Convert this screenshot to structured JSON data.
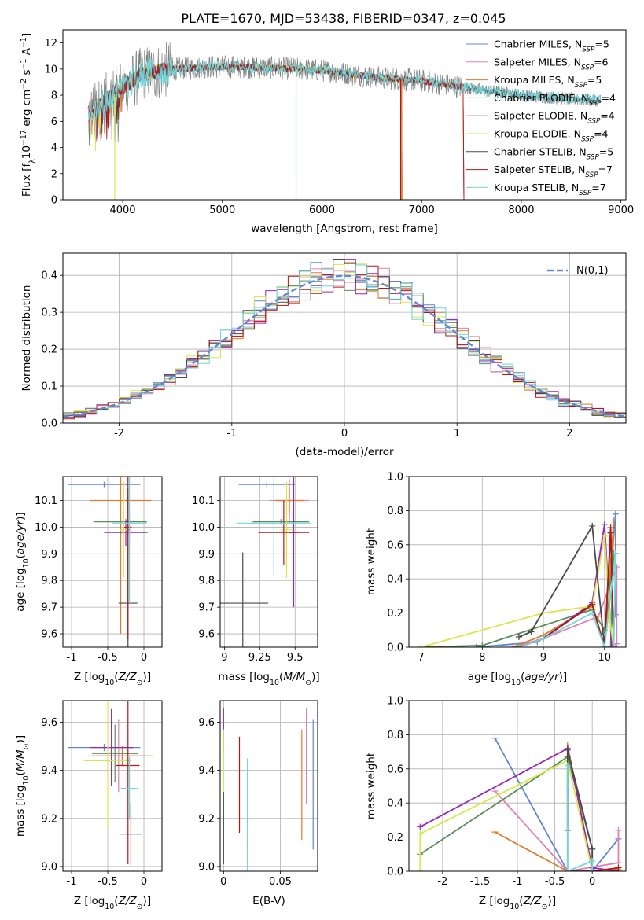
{
  "figure": {
    "title": "PLATE=1670, MJD=53438, FIBERID=0347, z=0.045"
  },
  "colors": {
    "Chabrier MILES": "#5f86d8",
    "Salpeter MILES": "#e57fb0",
    "Kroupa MILES": "#e07a2a",
    "Chabrier ELODIE": "#5a8f5a",
    "Salpeter ELODIE": "#9a27b3",
    "Kroupa ELODIE": "#d8e84a",
    "Chabrier STELIB": "#4a4a4a",
    "Salpeter STELIB": "#b01818",
    "Kroupa STELIB": "#6ed8dc",
    "data": "#808080"
  },
  "chart_data": [
    {
      "id": "spectrum",
      "type": "line",
      "xlabel": "wavelength [Angstrom, rest frame]",
      "ylabel": "Flux [f_λ 10^-17 erg cm^-2 s^-1 A^-1]",
      "xlim": [
        3400,
        9050
      ],
      "ylim": [
        0,
        13
      ],
      "xticks": [
        4000,
        5000,
        6000,
        7000,
        8000,
        9000
      ],
      "yticks": [
        0,
        2,
        4,
        6,
        8,
        10,
        12
      ],
      "grid": false,
      "legend_position": "top-right",
      "continuum_anchor_points": [
        [
          3650,
          6.4
        ],
        [
          3900,
          8.0
        ],
        [
          4000,
          8.6
        ],
        [
          4200,
          9.6
        ],
        [
          4500,
          10.0
        ],
        [
          5000,
          10.2
        ],
        [
          5500,
          10.1
        ],
        [
          6000,
          9.9
        ],
        [
          6500,
          9.4
        ],
        [
          7000,
          9.1
        ],
        [
          7500,
          8.5
        ],
        [
          8000,
          8.0
        ],
        [
          8500,
          7.7
        ],
        [
          8800,
          7.6
        ]
      ],
      "legend": [
        {
          "name": "Chabrier MILES",
          "nssp": "5"
        },
        {
          "name": "Salpeter MILES",
          "nssp": "6"
        },
        {
          "name": "Kroupa MILES",
          "nssp": "5"
        },
        {
          "name": "Chabrier ELODIE",
          "nssp": "4"
        },
        {
          "name": "Salpeter ELODIE",
          "nssp": "4"
        },
        {
          "name": "Kroupa ELODIE",
          "nssp": "4"
        },
        {
          "name": "Chabrier STELIB",
          "nssp": "5"
        },
        {
          "name": "Salpeter STELIB",
          "nssp": "7"
        },
        {
          "name": "Kroupa STELIB",
          "nssp": "7"
        }
      ]
    },
    {
      "id": "residuals",
      "type": "bar",
      "xlabel": "(data-model)/error",
      "ylabel": "Normed distribution",
      "xlim": [
        -2.5,
        2.5
      ],
      "ylim": [
        0,
        0.46
      ],
      "xticks": [
        -2,
        -1,
        0,
        1,
        2
      ],
      "yticks": [
        0.0,
        0.1,
        0.2,
        0.3,
        0.4
      ],
      "grid": true,
      "legend_position": "top-right",
      "legend_label": "N(0,1)",
      "bins": 50
    },
    {
      "id": "age_vs_Z",
      "type": "scatter",
      "xlabel": "Z [log10(Z/Z_sun)]",
      "ylabel": "age [log10(age/yr)]",
      "xlim": [
        -1.12,
        0.25
      ],
      "ylim": [
        9.55,
        10.19
      ],
      "xticks": [
        -1.0,
        -0.5,
        0.0
      ],
      "yticks": [
        9.6,
        9.7,
        9.8,
        9.9,
        10.0,
        10.1
      ],
      "grid": true,
      "points": [
        {
          "model": "Chabrier MILES",
          "x": -0.55,
          "xerr": 0.5,
          "y": 10.16,
          "yerr": 0.01
        },
        {
          "model": "Salpeter MILES",
          "x": -0.2,
          "xerr": 0.02,
          "y": 9.99,
          "yerr": 0.05
        },
        {
          "model": "Kroupa MILES",
          "x": -0.32,
          "xerr": 0.42,
          "y": 10.1,
          "yerr": 0.5
        },
        {
          "model": "Chabrier ELODIE",
          "x": -0.33,
          "xerr": 0.37,
          "y": 10.02,
          "yerr": 0.05
        },
        {
          "model": "Salpeter ELODIE",
          "x": -0.25,
          "xerr": 0.3,
          "y": 9.98,
          "yerr": 0.05
        },
        {
          "model": "Kroupa ELODIE",
          "x": -0.28,
          "xerr": 0.05,
          "y": 9.99,
          "yerr": 0.18
        },
        {
          "model": "Chabrier STELIB",
          "x": -0.22,
          "xerr": 0.13,
          "y": 9.715,
          "yerr": 0.43
        },
        {
          "model": "Salpeter STELIB",
          "x": -0.22,
          "xerr": 0.05,
          "y": 10.0,
          "yerr": 0.42
        },
        {
          "model": "Kroupa STELIB",
          "x": -0.2,
          "xerr": 0.24,
          "y": 10.015,
          "yerr": 0.3
        }
      ]
    },
    {
      "id": "age_vs_mass",
      "type": "scatter",
      "xlabel": "mass [log10(M/M_sun)]",
      "ylabel": "",
      "xlim": [
        8.97,
        9.66
      ],
      "ylim": [
        9.55,
        10.19
      ],
      "xticks": [
        9.0,
        9.25,
        9.5
      ],
      "yticks": [
        9.6,
        9.7,
        9.8,
        9.9,
        10.0,
        10.1
      ],
      "grid": true,
      "points": [
        {
          "model": "Chabrier MILES",
          "x": 9.3,
          "xerr": 0.2,
          "y": 10.16,
          "yerr": 0.01
        },
        {
          "model": "Salpeter MILES",
          "x": 9.46,
          "xerr": 0.14,
          "y": 10.1,
          "yerr": 0.08
        },
        {
          "model": "Kroupa MILES",
          "x": 9.46,
          "xerr": 0.1,
          "y": 10.1,
          "yerr": 0.05
        },
        {
          "model": "Chabrier ELODIE",
          "x": 9.4,
          "xerr": 0.2,
          "y": 10.02,
          "yerr": 0.01
        },
        {
          "model": "Salpeter ELODIE",
          "x": 9.49,
          "xerr": 0.03,
          "y": 9.98,
          "yerr": 0.28
        },
        {
          "model": "Kroupa ELODIE",
          "x": 9.44,
          "xerr": 0.04,
          "y": 9.99,
          "yerr": 0.18
        },
        {
          "model": "Chabrier STELIB",
          "x": 9.13,
          "xerr": 0.18,
          "y": 9.715,
          "yerr": 0.19
        },
        {
          "model": "Salpeter STELIB",
          "x": 9.42,
          "xerr": 0.18,
          "y": 9.98,
          "yerr": 0.12
        },
        {
          "model": "Kroupa STELIB",
          "x": 9.35,
          "xerr": 0.26,
          "y": 10.015,
          "yerr": 0.2
        }
      ]
    },
    {
      "id": "mass_weight_vs_age",
      "type": "line",
      "xlabel": "age [log10(age/yr)]",
      "ylabel": "mass weight",
      "xlim": [
        6.8,
        10.35
      ],
      "ylim": [
        0,
        1.0
      ],
      "xticks": [
        7,
        8,
        9,
        10
      ],
      "yticks": [
        0.0,
        0.2,
        0.4,
        0.6,
        0.8,
        1.0
      ],
      "grid": true,
      "series": [
        {
          "model": "Chabrier MILES",
          "points": [
            [
              7.9,
              0.0
            ],
            [
              8.9,
              0.03
            ],
            [
              9.8,
              0.25
            ],
            [
              10.0,
              0.0
            ],
            [
              10.18,
              0.78
            ],
            [
              10.18,
              0.19
            ]
          ]
        },
        {
          "model": "Salpeter MILES",
          "points": [
            [
              8.5,
              0.0
            ],
            [
              9.0,
              0.05
            ],
            [
              9.9,
              0.18
            ],
            [
              10.2,
              0.47
            ],
            [
              10.2,
              0.02
            ],
            [
              10.18,
              0.0
            ]
          ]
        },
        {
          "model": "Kroupa MILES",
          "points": [
            [
              8.5,
              0.0
            ],
            [
              9.0,
              0.07
            ],
            [
              9.8,
              0.24
            ],
            [
              10.0,
              0.0
            ],
            [
              10.15,
              0.74
            ],
            [
              10.1,
              0.0
            ]
          ]
        },
        {
          "model": "Chabrier ELODIE",
          "points": [
            [
              7.0,
              0.0
            ],
            [
              8.0,
              0.01
            ],
            [
              9.8,
              0.22
            ],
            [
              10.0,
              0.1
            ],
            [
              10.15,
              0.55
            ],
            [
              10.1,
              0.0
            ]
          ]
        },
        {
          "model": "Salpeter ELODIE",
          "points": [
            [
              8.6,
              0.0
            ],
            [
              9.0,
              0.05
            ],
            [
              9.8,
              0.26
            ],
            [
              10.0,
              0.72
            ],
            [
              10.12,
              0.0
            ]
          ]
        },
        {
          "model": "Kroupa ELODIE",
          "points": [
            [
              7.0,
              0.0
            ],
            [
              9.0,
              0.2
            ],
            [
              9.8,
              0.24
            ],
            [
              10.0,
              0.65
            ],
            [
              10.1,
              0.12
            ],
            [
              10.15,
              0.0
            ]
          ]
        },
        {
          "model": "Chabrier STELIB",
          "points": [
            [
              8.6,
              0.06
            ],
            [
              8.8,
              0.09
            ],
            [
              9.8,
              0.71
            ],
            [
              10.0,
              0.0
            ],
            [
              10.1,
              0.67
            ],
            [
              10.15,
              0.0
            ]
          ]
        },
        {
          "model": "Salpeter STELIB",
          "points": [
            [
              8.6,
              0.0
            ],
            [
              9.0,
              0.05
            ],
            [
              9.8,
              0.25
            ],
            [
              10.0,
              0.0
            ],
            [
              10.1,
              0.7
            ],
            [
              10.15,
              0.0
            ]
          ]
        },
        {
          "model": "Kroupa STELIB",
          "points": [
            [
              8.6,
              0.0
            ],
            [
              9.0,
              0.05
            ],
            [
              9.8,
              0.2
            ],
            [
              10.0,
              0.0
            ],
            [
              10.18,
              0.55
            ],
            [
              10.15,
              0.0
            ]
          ]
        }
      ]
    },
    {
      "id": "mass_vs_Z",
      "type": "scatter",
      "xlabel": "Z [log10(Z/Z_sun)]",
      "ylabel": "mass [log10(M/M_sun)]",
      "xlim": [
        -1.12,
        0.25
      ],
      "ylim": [
        8.98,
        9.69
      ],
      "xticks": [
        -1.0,
        -0.5,
        0.0
      ],
      "yticks": [
        9.0,
        9.2,
        9.4,
        9.6
      ],
      "grid": true,
      "points": [
        {
          "model": "Chabrier MILES",
          "x": -0.55,
          "xerr": 0.5,
          "y": 9.495,
          "yerr": 0.015
        },
        {
          "model": "Salpeter MILES",
          "x": -0.35,
          "xerr": 0.42,
          "y": 9.46,
          "yerr": 0.15
        },
        {
          "model": "Kroupa MILES",
          "x": -0.3,
          "xerr": 0.42,
          "y": 9.46,
          "yerr": 0.04
        },
        {
          "model": "Chabrier ELODIE",
          "x": -0.4,
          "xerr": 0.32,
          "y": 9.47,
          "yerr": 0.12
        },
        {
          "model": "Salpeter ELODIE",
          "x": -0.45,
          "xerr": 0.3,
          "y": 9.495,
          "yerr": 0.16
        },
        {
          "model": "Kroupa ELODIE",
          "x": -0.5,
          "xerr": 0.33,
          "y": 9.44,
          "yerr": 0.28
        },
        {
          "model": "Chabrier STELIB",
          "x": -0.18,
          "xerr": 0.16,
          "y": 9.135,
          "yerr": 0.13
        },
        {
          "model": "Salpeter STELIB",
          "x": -0.22,
          "xerr": 0.16,
          "y": 9.42,
          "yerr": 0.41
        },
        {
          "model": "Kroupa STELIB",
          "x": -0.2,
          "xerr": 0.12,
          "y": 9.325,
          "yerr": 0.13
        }
      ]
    },
    {
      "id": "mass_vs_ebv",
      "type": "scatter",
      "xlabel": "E(B-V)",
      "ylabel": "",
      "xlim": [
        -0.003,
        0.083
      ],
      "ylim": [
        8.98,
        9.69
      ],
      "xticks": [
        0.0,
        0.05
      ],
      "yticks": [
        9.0,
        9.2,
        9.4,
        9.6
      ],
      "grid": true,
      "points": [
        {
          "model": "Chabrier MILES",
          "x": 0.079,
          "xerr": 0,
          "y": 9.34,
          "yerr": 0.27
        },
        {
          "model": "Salpeter MILES",
          "x": 0.073,
          "xerr": 0,
          "y": 9.46,
          "yerr": 0.2
        },
        {
          "model": "Kroupa MILES",
          "x": 0.069,
          "xerr": 0,
          "y": 9.34,
          "yerr": 0.23
        },
        {
          "model": "Chabrier ELODIE",
          "x": 0.0,
          "xerr": 0,
          "y": 9.5,
          "yerr": 0.02
        },
        {
          "model": "Salpeter ELODIE",
          "x": 0.0,
          "xerr": 0,
          "y": 9.57,
          "yerr": 0.09
        },
        {
          "model": "Kroupa ELODIE",
          "x": 0.0,
          "xerr": 0,
          "y": 9.36,
          "yerr": 0.21
        },
        {
          "model": "Chabrier STELIB",
          "x": 0.0,
          "xerr": 0,
          "y": 9.16,
          "yerr": 0.15
        },
        {
          "model": "Salpeter STELIB",
          "x": 0.014,
          "xerr": 0,
          "y": 9.34,
          "yerr": 0.2
        },
        {
          "model": "Kroupa STELIB",
          "x": 0.021,
          "xerr": 0,
          "y": 9.2,
          "yerr": 0.25
        }
      ]
    },
    {
      "id": "mass_weight_vs_Z",
      "type": "line",
      "xlabel": "Z [log10(Z/Z_sun)]",
      "ylabel": "mass weight",
      "xlim": [
        -2.45,
        0.45
      ],
      "ylim": [
        0,
        1.0
      ],
      "xticks": [
        -2.0,
        -1.5,
        -1.0,
        -0.5,
        0.0
      ],
      "yticks": [
        0.0,
        0.2,
        0.4,
        0.6,
        0.8,
        1.0
      ],
      "grid": true,
      "series": [
        {
          "model": "Chabrier MILES",
          "points": [
            [
              -1.3,
              0.78
            ],
            [
              -0.33,
              0.0
            ],
            [
              0.0,
              0.0
            ],
            [
              0.35,
              0.19
            ]
          ]
        },
        {
          "model": "Salpeter MILES",
          "points": [
            [
              -1.3,
              0.47
            ],
            [
              -0.33,
              0.0
            ],
            [
              0.35,
              0.05
            ],
            [
              0.35,
              0.24
            ]
          ]
        },
        {
          "model": "Kroupa MILES",
          "points": [
            [
              -1.3,
              0.23
            ],
            [
              -0.33,
              0.0
            ],
            [
              -0.33,
              0.74
            ],
            [
              0.0,
              0.0
            ],
            [
              0.35,
              0.01
            ]
          ]
        },
        {
          "model": "Chabrier ELODIE",
          "points": [
            [
              -2.3,
              0.1
            ],
            [
              -0.33,
              0.67
            ],
            [
              0.0,
              0.13
            ],
            [
              0.0,
              0.0
            ]
          ]
        },
        {
          "model": "Salpeter ELODIE",
          "points": [
            [
              -2.3,
              0.26
            ],
            [
              -0.33,
              0.72
            ],
            [
              0.0,
              0.02
            ],
            [
              0.35,
              0.0
            ]
          ]
        },
        {
          "model": "Kroupa ELODIE",
          "points": [
            [
              -2.3,
              0.0
            ],
            [
              -2.3,
              0.22
            ],
            [
              -0.33,
              0.65
            ],
            [
              0.0,
              0.0
            ]
          ]
        },
        {
          "model": "Chabrier STELIB",
          "points": [
            [
              -0.33,
              0.24
            ],
            [
              -0.33,
              0.71
            ],
            [
              0.0,
              0.13
            ],
            [
              0.0,
              0.0
            ]
          ]
        },
        {
          "model": "Salpeter STELIB",
          "points": [
            [
              -0.33,
              0.0
            ],
            [
              0.0,
              0.0
            ],
            [
              0.35,
              0.02
            ]
          ]
        },
        {
          "model": "Kroupa STELIB",
          "points": [
            [
              -0.33,
              0.62
            ],
            [
              -0.33,
              0.0
            ],
            [
              0.0,
              0.06
            ],
            [
              0.0,
              0.0
            ]
          ]
        }
      ]
    }
  ]
}
